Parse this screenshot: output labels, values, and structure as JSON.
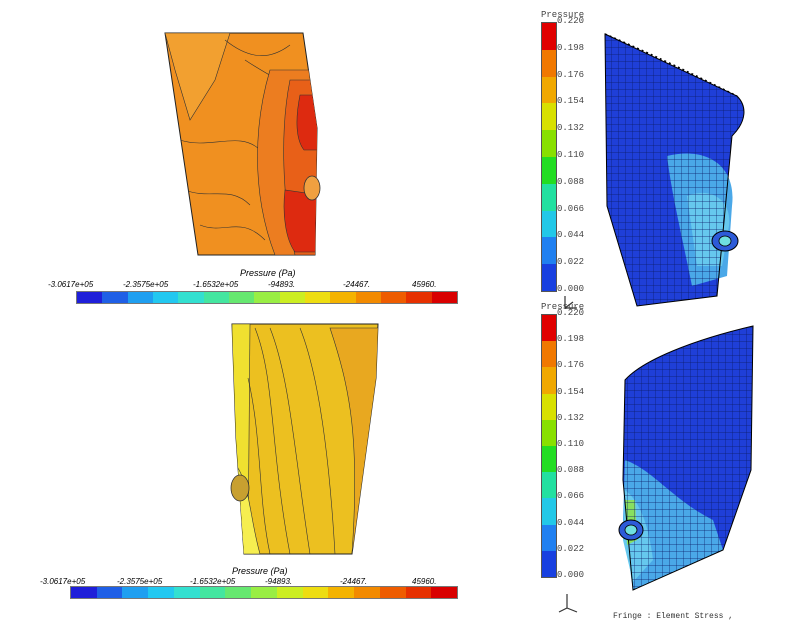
{
  "top_left": {
    "legend_title": "Pressure (Pa)",
    "ticks": [
      "-3.0617e+05",
      "-2.3575e+05",
      "-1.6532e+05",
      "-94893.",
      "-24467.",
      "45960."
    ]
  },
  "bottom_left": {
    "legend_title": "Pressure (Pa)",
    "ticks": [
      "-3.0617e+05",
      "-2.3575e+05",
      "-1.6532e+05",
      "-94893.",
      "-24467.",
      "45960."
    ]
  },
  "top_right": {
    "legend_title": "Pressure",
    "ticks": [
      "0.220",
      "0.198",
      "0.176",
      "0.154",
      "0.132",
      "0.110",
      "0.088",
      "0.066",
      "0.044",
      "0.022",
      "0.000"
    ]
  },
  "bottom_right": {
    "legend_title": "Pressure",
    "ticks": [
      "0.220",
      "0.198",
      "0.176",
      "0.154",
      "0.132",
      "0.110",
      "0.088",
      "0.066",
      "0.044",
      "0.022",
      "0.000"
    ],
    "fringe_label": "Fringe : Element Stress ,"
  },
  "colors": {
    "horizontal_scale": [
      "#1f1fd9",
      "#1f5fe6",
      "#1f9ff0",
      "#22c8f0",
      "#33e0d0",
      "#44e6a0",
      "#66e870",
      "#99ee44",
      "#ccee22",
      "#eedd11",
      "#f4b300",
      "#f28a00",
      "#ee5c00",
      "#e63000",
      "#d90000"
    ],
    "vertical_scale": [
      "#e00000",
      "#f07800",
      "#f0a800",
      "#d8e000",
      "#88e000",
      "#22dd22",
      "#22e0a0",
      "#22c8e8",
      "#2080f0",
      "#1840e0"
    ]
  }
}
